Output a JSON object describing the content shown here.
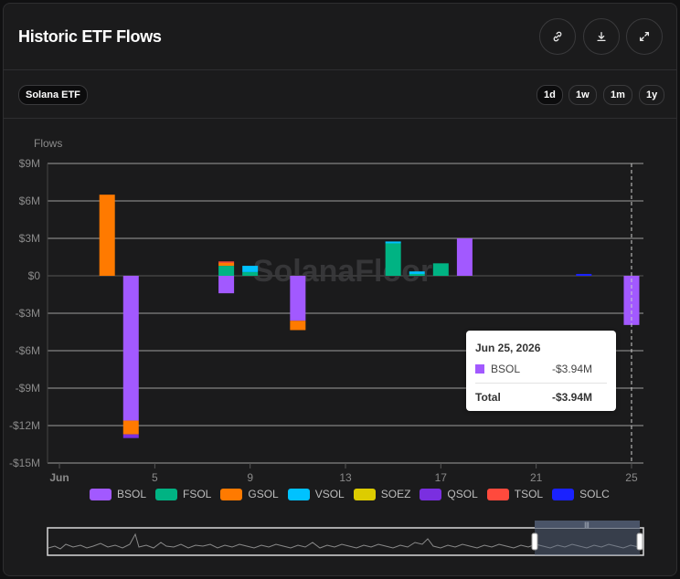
{
  "header": {
    "title": "Historic ETF Flows",
    "link_icon": "link-icon",
    "download_icon": "download-icon",
    "expand_icon": "expand-icon"
  },
  "filter": {
    "label": "Solana ETF"
  },
  "ranges": [
    {
      "label": "1d",
      "active": true
    },
    {
      "label": "1w",
      "active": false
    },
    {
      "label": "1m",
      "active": false
    },
    {
      "label": "1y",
      "active": false
    }
  ],
  "watermark": "SolanaFloor",
  "tooltip": {
    "date": "Jun 25, 2026",
    "series": "BSOL",
    "value": "-$3.94M",
    "total_label": "Total",
    "total_value": "-$3.94M"
  },
  "chart_data": {
    "type": "bar",
    "stacked": true,
    "ylabel": "Flows",
    "ylim": [
      -15,
      9
    ],
    "yticks": [
      9,
      6,
      3,
      0,
      -3,
      -6,
      -9,
      -12,
      -15
    ],
    "ytick_labels": [
      "$9M",
      "$6M",
      "$3M",
      "$0",
      "-$3M",
      "-$6M",
      "-$9M",
      "-$12M",
      "-$15M"
    ],
    "xlim": [
      0.5,
      25.5
    ],
    "xticks": [
      1,
      5,
      9,
      13,
      17,
      21,
      25
    ],
    "xtick_labels": [
      "Jun",
      "5",
      "9",
      "13",
      "17",
      "21",
      "25"
    ],
    "grid": true,
    "legend_position": "bottom",
    "colors": {
      "BSOL": "#a259ff",
      "FSOL": "#00b383",
      "GSOL": "#ff7a00",
      "VSOL": "#00c2ff",
      "SOEZ": "#ddcc00",
      "QSOL": "#7a2fe0",
      "TSOL": "#ff4a3d",
      "SOLC": "#1a22ff"
    },
    "series": [
      {
        "name": "BSOL",
        "x": [
          4,
          8,
          11,
          18,
          25
        ],
        "values": [
          -11.6,
          -1.4,
          -3.6,
          3.0,
          -3.94
        ]
      },
      {
        "name": "FSOL",
        "x": [
          8,
          9,
          15,
          16,
          17
        ],
        "values": [
          0.8,
          0.3,
          2.6,
          0.15,
          1.0
        ]
      },
      {
        "name": "GSOL",
        "x": [
          3,
          4,
          8,
          11
        ],
        "values": [
          6.5,
          -1.1,
          0.25,
          -0.75
        ]
      },
      {
        "name": "VSOL",
        "x": [
          9,
          15,
          16
        ],
        "values": [
          0.5,
          0.15,
          0.2
        ]
      },
      {
        "name": "SOEZ",
        "x": [],
        "values": []
      },
      {
        "name": "QSOL",
        "x": [
          4
        ],
        "values": [
          -0.3
        ]
      },
      {
        "name": "TSOL",
        "x": [
          8
        ],
        "values": [
          0.1
        ]
      },
      {
        "name": "SOLC",
        "x": [
          23
        ],
        "values": [
          0.15
        ]
      }
    ],
    "highlight_x": 25
  }
}
